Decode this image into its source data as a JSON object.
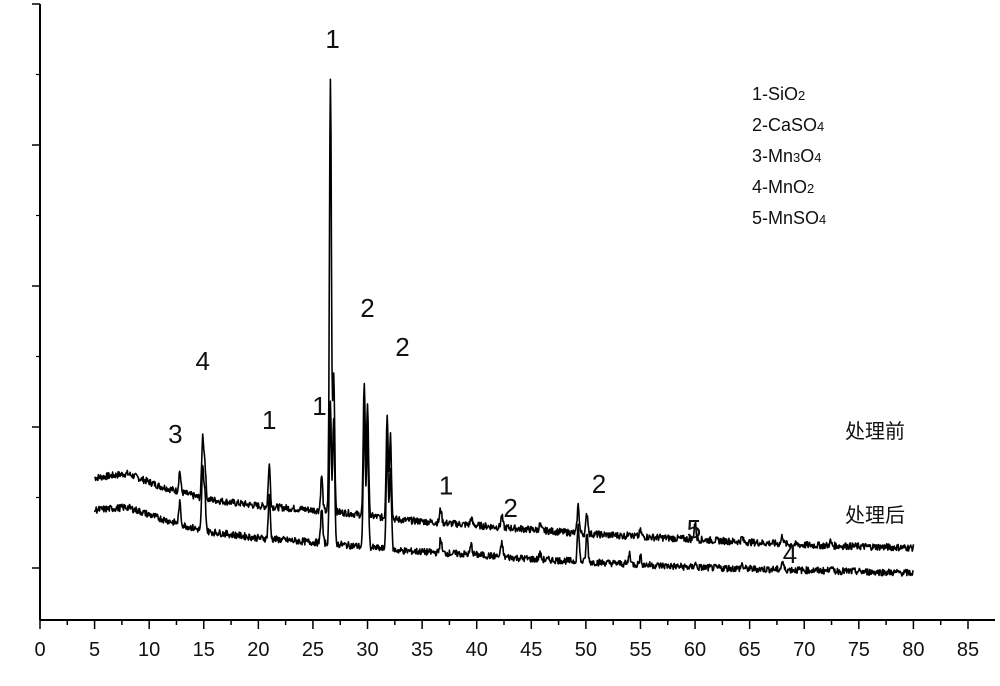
{
  "chart_data": {
    "type": "line",
    "title": "",
    "xlabel": "",
    "ylabel": "",
    "xlim": [
      0,
      85
    ],
    "x_ticks": [
      "0",
      "5",
      "10",
      "15",
      "20",
      "25",
      "30",
      "35",
      "40",
      "45",
      "50",
      "55",
      "60",
      "65",
      "70",
      "75",
      "80",
      "85"
    ],
    "y_ticks_count": 5,
    "legend": {
      "placement": "top-right",
      "entries": [
        "1-SiO2",
        "2-CaSO4",
        "3-Mn3O4",
        "4-MnO2",
        "5-MnSO4"
      ]
    },
    "series": [
      {
        "name": "处理前",
        "baseline": [
          [
            5,
            0.73
          ],
          [
            8,
            0.76
          ],
          [
            11,
            0.67
          ],
          [
            15,
            0.58
          ],
          [
            20,
            0.53
          ],
          [
            25,
            0.5
          ],
          [
            28,
            0.48
          ],
          [
            33,
            0.43
          ],
          [
            40,
            0.39
          ],
          [
            45,
            0.36
          ],
          [
            50,
            0.33
          ],
          [
            55,
            0.31
          ],
          [
            60,
            0.29
          ],
          [
            65,
            0.27
          ],
          [
            70,
            0.25
          ],
          [
            75,
            0.24
          ],
          [
            80,
            0.23
          ]
        ],
        "peaks": [
          [
            12.8,
            0.15
          ],
          [
            14.9,
            0.43
          ],
          [
            15.1,
            0.25
          ],
          [
            21,
            0.3
          ],
          [
            25.8,
            0.25
          ],
          [
            26.6,
            3.1
          ],
          [
            26.9,
            1.0
          ],
          [
            29.7,
            0.95
          ],
          [
            30,
            0.8
          ],
          [
            31.8,
            0.75
          ],
          [
            32.1,
            0.6
          ],
          [
            36.7,
            0.1
          ],
          [
            39.5,
            0.05
          ],
          [
            42.3,
            0.08
          ],
          [
            45.8,
            0.04
          ],
          [
            49.3,
            0.2
          ],
          [
            50.1,
            0.15
          ],
          [
            54,
            0.04
          ],
          [
            55,
            0.04
          ],
          [
            60,
            0.12
          ],
          [
            64.3,
            0.03
          ],
          [
            68,
            0.06
          ],
          [
            72.4,
            0.03
          ]
        ]
      },
      {
        "name": "处理后",
        "baseline": [
          [
            5,
            0.5
          ],
          [
            8,
            0.52
          ],
          [
            11,
            0.44
          ],
          [
            15,
            0.35
          ],
          [
            20,
            0.3
          ],
          [
            25,
            0.27
          ],
          [
            28,
            0.25
          ],
          [
            33,
            0.21
          ],
          [
            40,
            0.18
          ],
          [
            45,
            0.15
          ],
          [
            50,
            0.13
          ],
          [
            55,
            0.11
          ],
          [
            60,
            0.09
          ],
          [
            65,
            0.08
          ],
          [
            70,
            0.07
          ],
          [
            75,
            0.06
          ],
          [
            80,
            0.05
          ]
        ],
        "peaks": [
          [
            12.8,
            0.15
          ],
          [
            14.9,
            0.43
          ],
          [
            15.1,
            0.25
          ],
          [
            21,
            0.3
          ],
          [
            25.8,
            0.25
          ],
          [
            26.6,
            1.0
          ],
          [
            26.9,
            0.9
          ],
          [
            29.7,
            0.95
          ],
          [
            30,
            0.8
          ],
          [
            31.8,
            0.75
          ],
          [
            32.1,
            0.6
          ],
          [
            36.7,
            0.1
          ],
          [
            39.5,
            0.07
          ],
          [
            42.3,
            0.1
          ],
          [
            45.8,
            0.04
          ],
          [
            49.3,
            0.25
          ],
          [
            50.1,
            0.2
          ],
          [
            54,
            0.08
          ],
          [
            55,
            0.06
          ],
          [
            60,
            0.03
          ],
          [
            64.3,
            0.03
          ],
          [
            68,
            0.06
          ],
          [
            72.4,
            0.04
          ]
        ]
      }
    ],
    "peak_labels": [
      {
        "text": "1",
        "x": 26.8,
        "y": 3.8
      },
      {
        "text": "4",
        "x": 14.9,
        "y": 1.5
      },
      {
        "text": "3",
        "x": 12.4,
        "y": 0.98
      },
      {
        "text": "1",
        "x": 21,
        "y": 1.08
      },
      {
        "text": "1",
        "x": 25.6,
        "y": 1.18
      },
      {
        "text": "2",
        "x": 30,
        "y": 1.88
      },
      {
        "text": "2",
        "x": 33.2,
        "y": 1.6
      },
      {
        "text": "1",
        "x": 37.2,
        "y": 0.61
      },
      {
        "text": "2",
        "x": 43.1,
        "y": 0.45
      },
      {
        "text": "2",
        "x": 51.2,
        "y": 0.62
      },
      {
        "text": "5",
        "x": 59.9,
        "y": 0.3
      },
      {
        "text": "4",
        "x": 68.7,
        "y": 0.12
      }
    ]
  }
}
